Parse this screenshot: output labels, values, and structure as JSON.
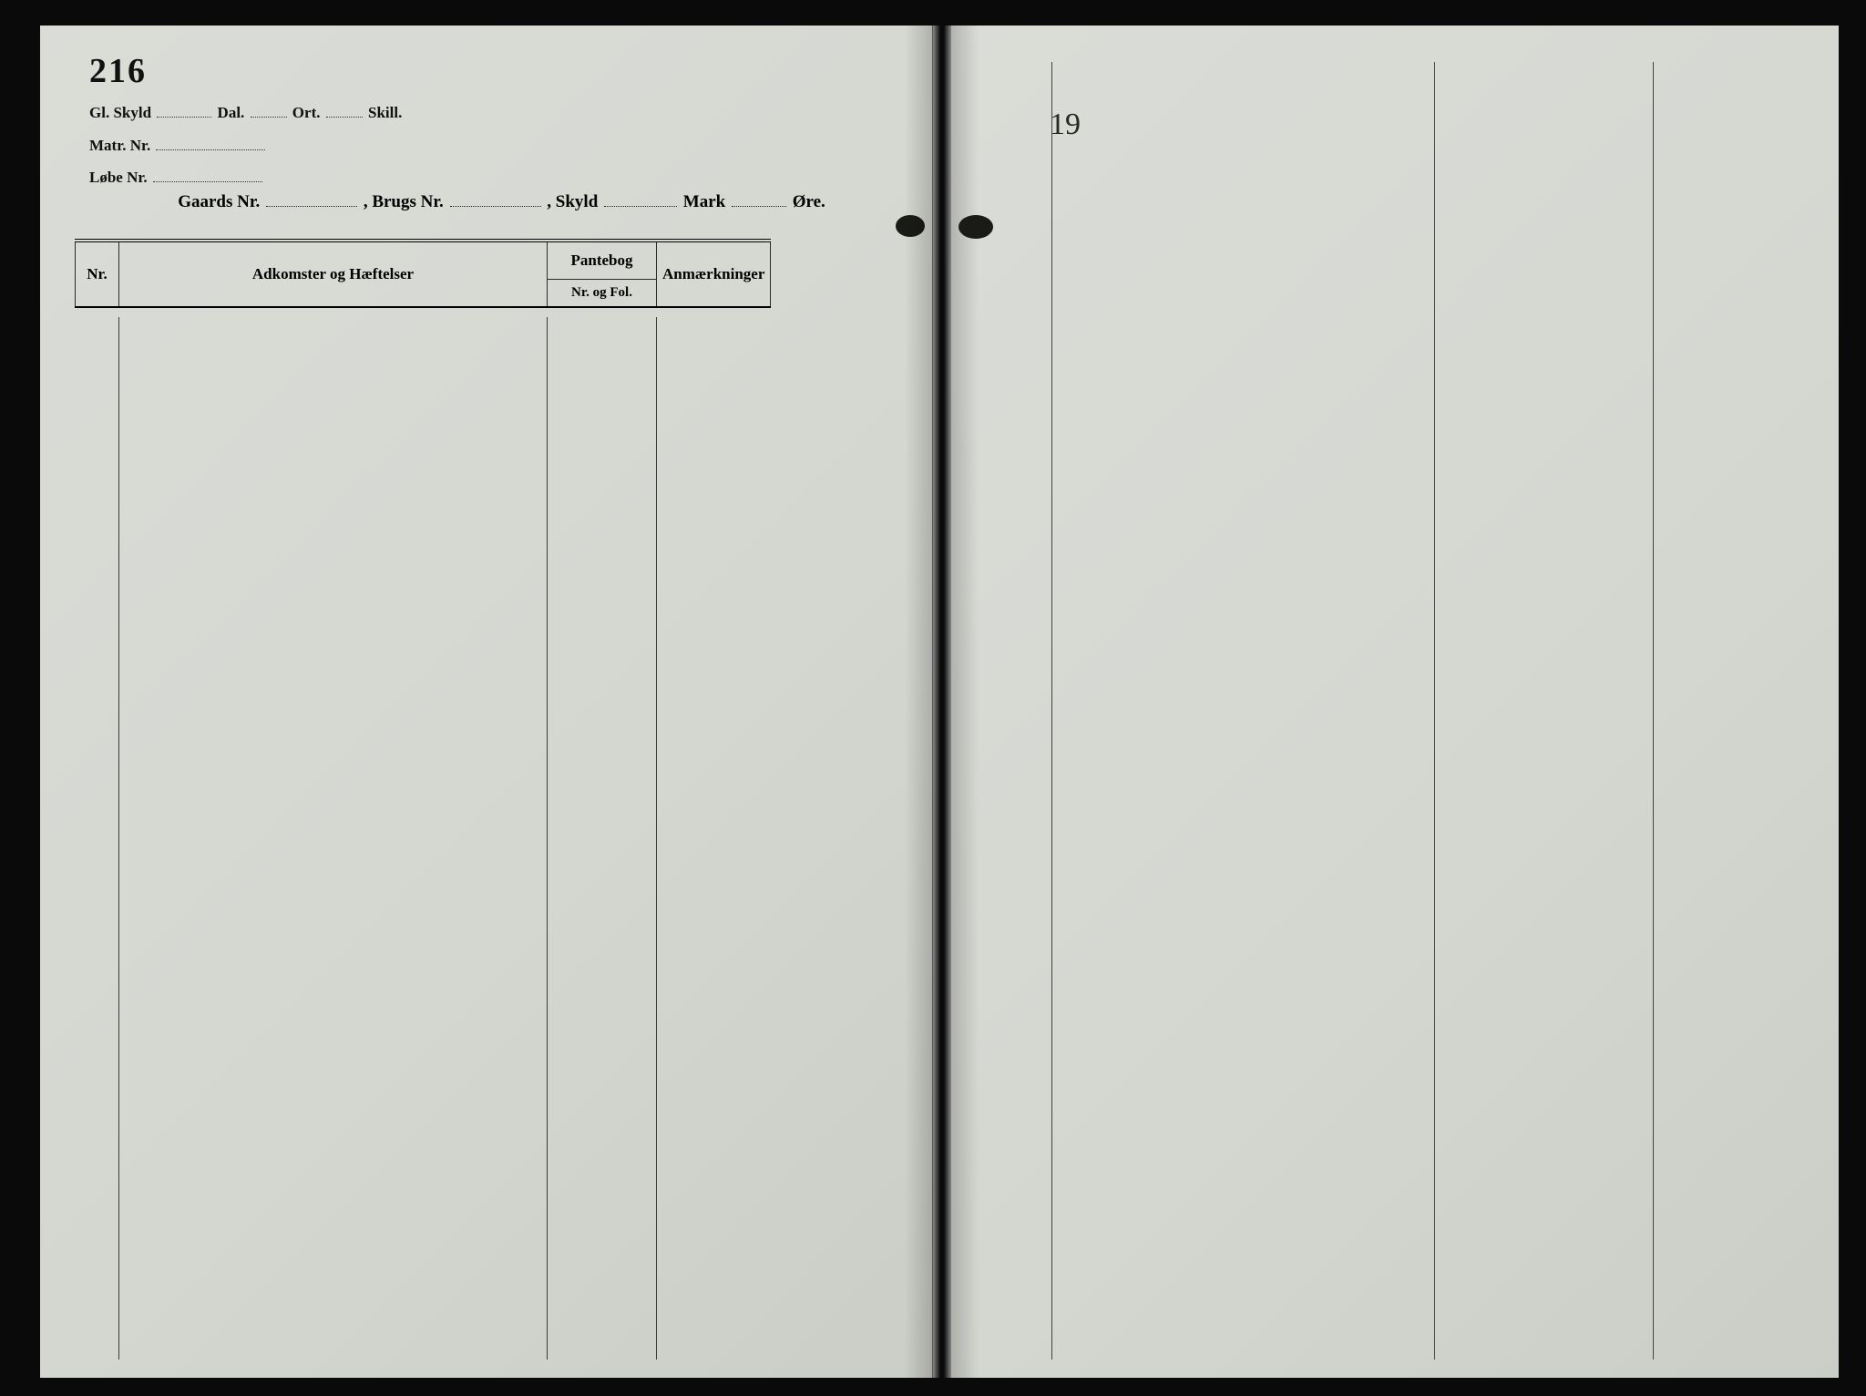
{
  "page_number": "216",
  "meta": {
    "line1": {
      "gl_skyld": "Gl. Skyld",
      "dal": "Dal.",
      "ort": "Ort.",
      "skill": "Skill."
    },
    "line2": {
      "matr_nr": "Matr. Nr."
    },
    "line3": {
      "lobe_nr": "Løbe Nr."
    }
  },
  "title": {
    "gaards_nr": "Gaards Nr.",
    "brugs_nr": ", Brugs Nr.",
    "skyld": ", Skyld",
    "mark": "Mark",
    "ore": "Øre."
  },
  "table": {
    "nr": "Nr.",
    "adk": "Adkomster og Hæftelser",
    "pantebog": "Pantebog",
    "nr_fol": "Nr. og Fol.",
    "anm": "Anmærkninger"
  },
  "right_page": {
    "handwritten": "19"
  },
  "colors": {
    "paper": "#d8dad5",
    "ink": "#111111",
    "rule": "#3a3a36",
    "background": "#0a0a0a"
  }
}
